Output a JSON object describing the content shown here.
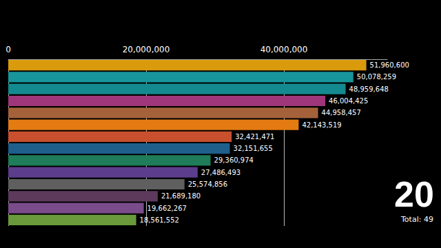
{
  "chart_data": {
    "type": "bar",
    "orientation": "horizontal",
    "categories": [
      null,
      null,
      null,
      null,
      null,
      null,
      null,
      null,
      null,
      null,
      null,
      null,
      null,
      null
    ],
    "values": [
      51960600,
      50078259,
      48959648,
      46004425,
      44958457,
      42143519,
      32421471,
      32151655,
      29360974,
      27486493,
      25574856,
      21689180,
      19662267,
      18561552
    ],
    "value_labels": [
      "51,960,600",
      "50,078,259",
      "48,959,648",
      "46,004,425",
      "44,958,457",
      "42,143,519",
      "32,421,471",
      "32,151,655",
      "29,360,974",
      "27,486,493",
      "25,574,856",
      "21,689,180",
      "19,662,267",
      "18,561,552"
    ],
    "colors": [
      "#d99a0c",
      "#17959b",
      "#138a8f",
      "#a0367a",
      "#a5623a",
      "#e37b12",
      "#c8502e",
      "#1e5f8c",
      "#1f7d5a",
      "#5b3d8c",
      "#5f5f5f",
      "#5d3a5c",
      "#7a4c8a",
      "#6a9a3c"
    ],
    "xlim": [
      0,
      55000000
    ],
    "xticks": [
      0,
      {
        "value": 20000000,
        "label": "20,000,000"
      },
      {
        "value": 40000000,
        "label": "40,000,000"
      }
    ],
    "grid": true,
    "data_labels": true,
    "tick_labels": "x",
    "annotations": [
      "20",
      "Total: 49"
    ]
  }
}
